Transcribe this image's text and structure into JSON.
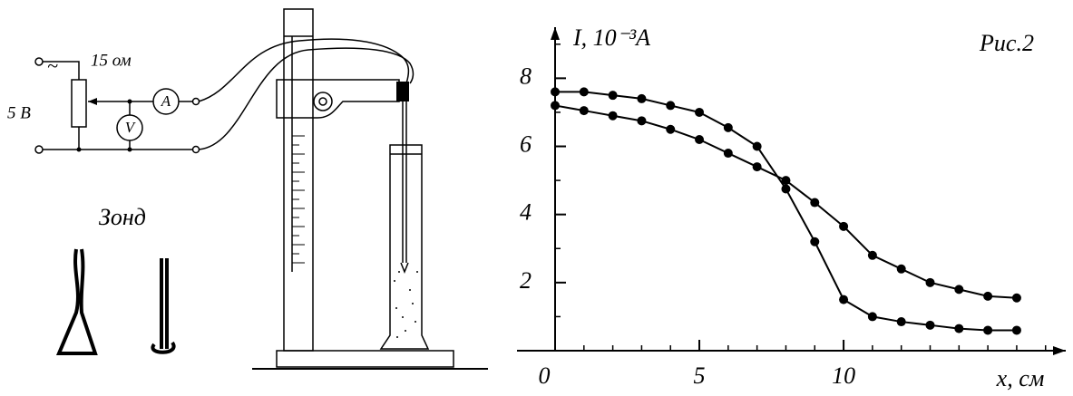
{
  "diagram": {
    "resistor_label": "15 ом",
    "source_label": "5 В",
    "ac_symbol": "~",
    "ammeter": "A",
    "voltmeter": "V",
    "probe_label": "Зонд"
  },
  "chart_data": {
    "type": "line",
    "annotation": "Рис.2",
    "xlabel": "x, см",
    "ylabel": "I, 10⁻³A",
    "x": [
      0,
      1,
      2,
      3,
      4,
      5,
      6,
      7,
      8,
      9,
      10,
      11,
      12,
      13,
      14,
      15,
      16
    ],
    "series": [
      {
        "color": "#000",
        "values": [
          7.6,
          7.6,
          7.5,
          7.4,
          7.2,
          7.0,
          6.55,
          6.0,
          4.75,
          3.2,
          1.5,
          1.0,
          0.85,
          0.75,
          0.65,
          0.6,
          0.6
        ]
      },
      {
        "color": "#000",
        "values": [
          7.2,
          7.05,
          6.9,
          6.75,
          6.5,
          6.2,
          5.8,
          5.4,
          5.0,
          4.35,
          3.65,
          2.8,
          2.4,
          2.0,
          1.8,
          1.6,
          1.55
        ]
      }
    ],
    "xlim": [
      0,
      17.7
    ],
    "ylim": [
      0,
      9.5
    ],
    "xticks": [
      0,
      5,
      10
    ],
    "yticks": [
      2,
      4,
      6,
      8
    ],
    "xminorticks": [
      1,
      2,
      3,
      4,
      6,
      7,
      8,
      9,
      11,
      12,
      13,
      14,
      15,
      16,
      17
    ],
    "yminorticks": [
      1,
      3,
      5,
      7,
      9
    ]
  }
}
